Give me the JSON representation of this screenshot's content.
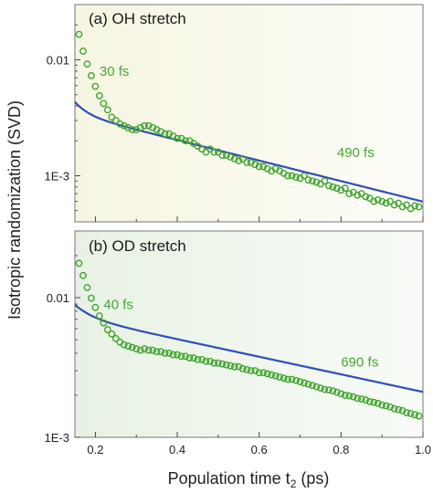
{
  "colors": {
    "fit_line": "#2f4fb8",
    "markers": "#3fa52e",
    "annotation": "#43a832",
    "panel_a_bg_left": "#f6f5e2",
    "panel_a_bg_right": "#fdfdf8",
    "panel_b_bg_left": "#e8f2e4",
    "panel_b_bg_right": "#f8fbf7",
    "frame": "#777777"
  },
  "chart_data": [
    {
      "type": "line",
      "panel_label": "(a) OH stretch",
      "scale_y": "log",
      "xlim": [
        0.15,
        1.0
      ],
      "ylim": [
        0.0004,
        0.03
      ],
      "y_ticks": [
        {
          "value": 0.01,
          "label": "0.01"
        },
        {
          "value": 0.001,
          "label": "1E-3"
        }
      ],
      "show_x_tick_labels": false,
      "annotations": [
        {
          "text": "30 fs",
          "x": 0.21,
          "y": 0.0073
        },
        {
          "text": "490 fs",
          "x": 0.79,
          "y": 0.00145
        }
      ],
      "series": [
        {
          "kind": "fit",
          "fit": {
            "a1": 0.14,
            "tau1_ps": 0.03,
            "a2": 0.0046,
            "tau2_ps": 0.49,
            "offset": 0
          },
          "x_start": 0.15,
          "x_end": 1.0
        },
        {
          "kind": "data",
          "marker": "open-circle",
          "x": [
            0.16,
            0.17,
            0.18,
            0.19,
            0.2,
            0.21,
            0.22,
            0.23,
            0.24,
            0.25,
            0.26,
            0.27,
            0.28,
            0.29,
            0.3,
            0.31,
            0.32,
            0.33,
            0.34,
            0.35,
            0.36,
            0.37,
            0.38,
            0.39,
            0.4,
            0.41,
            0.42,
            0.43,
            0.44,
            0.45,
            0.46,
            0.47,
            0.48,
            0.49,
            0.5,
            0.51,
            0.52,
            0.53,
            0.54,
            0.55,
            0.56,
            0.57,
            0.58,
            0.59,
            0.6,
            0.61,
            0.62,
            0.63,
            0.64,
            0.65,
            0.66,
            0.67,
            0.68,
            0.69,
            0.7,
            0.71,
            0.72,
            0.73,
            0.74,
            0.75,
            0.76,
            0.77,
            0.78,
            0.79,
            0.8,
            0.81,
            0.82,
            0.83,
            0.84,
            0.85,
            0.86,
            0.87,
            0.88,
            0.89,
            0.9,
            0.91,
            0.92,
            0.93,
            0.94,
            0.95,
            0.96,
            0.97,
            0.98,
            0.99
          ],
          "y": [
            0.0166,
            0.0119,
            0.0092,
            0.0073,
            0.0059,
            0.0049,
            0.0042,
            0.0037,
            0.0032,
            0.003,
            0.0028,
            0.0027,
            0.0026,
            0.0025,
            0.0025,
            0.0026,
            0.0027,
            0.0027,
            0.0026,
            0.0025,
            0.0024,
            0.0023,
            0.0023,
            0.0022,
            0.0021,
            0.0021,
            0.002,
            0.002,
            0.0019,
            0.0018,
            0.0017,
            0.0016,
            0.0017,
            0.0016,
            0.0016,
            0.0015,
            0.0015,
            0.00145,
            0.0014,
            0.00135,
            0.0014,
            0.0013,
            0.0013,
            0.00125,
            0.0012,
            0.0012,
            0.00115,
            0.0011,
            0.00115,
            0.0011,
            0.00105,
            0.001,
            0.001,
            0.00097,
            0.00095,
            0.001,
            0.00092,
            0.0009,
            0.00088,
            0.00085,
            0.0009,
            0.00082,
            0.0008,
            0.00078,
            0.00075,
            0.00078,
            0.0007,
            0.00072,
            0.00068,
            0.0007,
            0.00066,
            0.00064,
            0.0006,
            0.00062,
            0.0006,
            0.00058,
            0.0006,
            0.00056,
            0.00058,
            0.00054,
            0.00056,
            0.00052,
            0.00055,
            0.00054
          ]
        }
      ]
    },
    {
      "type": "line",
      "panel_label": "(b) OD stretch",
      "scale_y": "log",
      "xlim": [
        0.15,
        1.0
      ],
      "ylim": [
        0.001,
        0.03
      ],
      "x_ticks": [
        {
          "value": 0.2,
          "label": "0.2"
        },
        {
          "value": 0.4,
          "label": "0.4"
        },
        {
          "value": 0.6,
          "label": "0.6"
        },
        {
          "value": 0.8,
          "label": "0.8"
        },
        {
          "value": 1.0,
          "label": "1.0"
        }
      ],
      "y_ticks": [
        {
          "value": 0.01,
          "label": "0.01"
        },
        {
          "value": 0.001,
          "label": "1E-3"
        }
      ],
      "annotations": [
        {
          "text": "40 fs",
          "x": 0.22,
          "y": 0.0083
        },
        {
          "text": "690 fs",
          "x": 0.8,
          "y": 0.0032
        }
      ],
      "series": [
        {
          "kind": "fit",
          "fit": {
            "a1": 0.07,
            "tau1_ps": 0.04,
            "a2": 0.009,
            "tau2_ps": 0.69,
            "offset": 0
          },
          "x_start": 0.15,
          "x_end": 1.0
        },
        {
          "kind": "data",
          "marker": "open-circle",
          "x": [
            0.16,
            0.17,
            0.18,
            0.19,
            0.2,
            0.21,
            0.22,
            0.23,
            0.24,
            0.25,
            0.26,
            0.27,
            0.28,
            0.29,
            0.3,
            0.31,
            0.32,
            0.33,
            0.34,
            0.35,
            0.36,
            0.37,
            0.38,
            0.39,
            0.4,
            0.41,
            0.42,
            0.43,
            0.44,
            0.45,
            0.46,
            0.47,
            0.48,
            0.49,
            0.5,
            0.51,
            0.52,
            0.53,
            0.54,
            0.55,
            0.56,
            0.57,
            0.58,
            0.59,
            0.6,
            0.61,
            0.62,
            0.63,
            0.64,
            0.65,
            0.66,
            0.67,
            0.68,
            0.69,
            0.7,
            0.71,
            0.72,
            0.73,
            0.74,
            0.75,
            0.76,
            0.77,
            0.78,
            0.79,
            0.8,
            0.81,
            0.82,
            0.83,
            0.84,
            0.85,
            0.86,
            0.87,
            0.88,
            0.89,
            0.9,
            0.91,
            0.92,
            0.93,
            0.94,
            0.95,
            0.96,
            0.97,
            0.98,
            0.99
          ],
          "y": [
            0.0176,
            0.0144,
            0.0118,
            0.0099,
            0.0085,
            0.0074,
            0.0066,
            0.0059,
            0.0055,
            0.0051,
            0.0048,
            0.0046,
            0.0045,
            0.0044,
            0.0043,
            0.0042,
            0.0043,
            0.0042,
            0.0042,
            0.0041,
            0.0041,
            0.004,
            0.004,
            0.0039,
            0.0039,
            0.0038,
            0.0038,
            0.0037,
            0.0037,
            0.0036,
            0.0036,
            0.0035,
            0.0035,
            0.0034,
            0.0034,
            0.00335,
            0.0033,
            0.00325,
            0.0032,
            0.0032,
            0.0031,
            0.00305,
            0.003,
            0.003,
            0.0029,
            0.0029,
            0.00285,
            0.0028,
            0.00275,
            0.0027,
            0.00265,
            0.0026,
            0.0026,
            0.00255,
            0.0025,
            0.00245,
            0.0024,
            0.00235,
            0.0023,
            0.00225,
            0.0022,
            0.00218,
            0.00215,
            0.0021,
            0.00205,
            0.002,
            0.00198,
            0.00195,
            0.0019,
            0.00188,
            0.00185,
            0.0018,
            0.00178,
            0.00175,
            0.0017,
            0.00168,
            0.00165,
            0.0016,
            0.00158,
            0.00155,
            0.0015,
            0.00148,
            0.00145,
            0.00142
          ]
        }
      ]
    }
  ],
  "shared_axes": {
    "xlabel_main": "Population time t",
    "xlabel_sub": "2",
    "xlabel_unit": " (ps)",
    "ylabel": "Isotropic randomization (SVD)"
  }
}
